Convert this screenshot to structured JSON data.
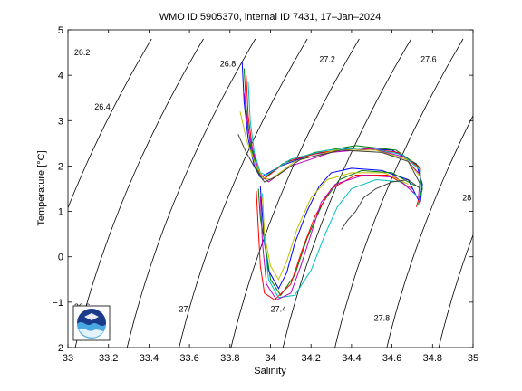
{
  "chart_data": {
    "type": "line",
    "title": "WMO ID 5905370, internal ID 7431, 17–Jan–2024",
    "xlabel": "Salinity",
    "ylabel": "Temperature [°C]",
    "xlim": [
      33,
      35
    ],
    "ylim": [
      -2,
      5
    ],
    "xticks": [
      "33",
      "33.2",
      "33.4",
      "33.6",
      "33.8",
      "34",
      "34.2",
      "34.4",
      "34.6",
      "34.8",
      "35"
    ],
    "yticks": [
      "−2",
      "−1",
      "0",
      "1",
      "2",
      "3",
      "4",
      "5"
    ],
    "grid": false,
    "legend": "none",
    "density_contours": [
      {
        "label": "26.2",
        "label_at": [
          33.07,
          4.5
        ]
      },
      {
        "label": "26.4",
        "label_at": [
          33.17,
          3.3
        ]
      },
      {
        "label": "26.6",
        "label_at": [
          33.07,
          -1.1
        ]
      },
      {
        "label": "26.8",
        "label_at": [
          33.79,
          4.25
        ]
      },
      {
        "label": "27",
        "label_at": [
          33.57,
          -1.15
        ]
      },
      {
        "label": "27.2",
        "label_at": [
          34.28,
          4.35
        ]
      },
      {
        "label": "27.4",
        "label_at": [
          34.04,
          -1.15
        ]
      },
      {
        "label": "27.6",
        "label_at": [
          34.78,
          4.35
        ]
      },
      {
        "label": "27.8",
        "label_at": [
          34.55,
          -1.35
        ]
      },
      {
        "label": "28",
        "label_at": [
          34.97,
          1.3
        ]
      }
    ],
    "profiles": [
      {
        "color": "#0000ff",
        "points": [
          [
            33.86,
            4.3
          ],
          [
            33.87,
            3.4
          ],
          [
            33.89,
            2.6
          ],
          [
            33.92,
            2.0
          ],
          [
            33.95,
            1.75
          ],
          [
            34.05,
            2.0
          ],
          [
            34.2,
            2.25
          ],
          [
            34.4,
            2.4
          ],
          [
            34.6,
            2.35
          ],
          [
            34.72,
            2.05
          ],
          [
            34.75,
            1.6
          ],
          [
            34.74,
            1.2
          ]
        ]
      },
      {
        "color": "#008000",
        "points": [
          [
            33.87,
            4.15
          ],
          [
            33.88,
            3.3
          ],
          [
            33.9,
            2.5
          ],
          [
            33.93,
            1.95
          ],
          [
            33.96,
            1.7
          ],
          [
            34.06,
            2.05
          ],
          [
            34.22,
            2.3
          ],
          [
            34.42,
            2.45
          ],
          [
            34.62,
            2.35
          ],
          [
            34.73,
            2.0
          ],
          [
            34.75,
            1.5
          ],
          [
            34.73,
            1.15
          ]
        ]
      },
      {
        "color": "#ff0000",
        "points": [
          [
            33.88,
            4.0
          ],
          [
            33.89,
            3.1
          ],
          [
            33.91,
            2.4
          ],
          [
            33.94,
            1.9
          ],
          [
            33.97,
            1.72
          ],
          [
            34.08,
            2.1
          ],
          [
            34.25,
            2.3
          ],
          [
            34.45,
            2.4
          ],
          [
            34.63,
            2.3
          ],
          [
            34.74,
            1.95
          ],
          [
            34.74,
            1.4
          ],
          [
            34.72,
            1.1
          ]
        ]
      },
      {
        "color": "#00bfbf",
        "points": [
          [
            33.89,
            3.85
          ],
          [
            33.9,
            3.0
          ],
          [
            33.92,
            2.3
          ],
          [
            33.95,
            1.85
          ],
          [
            33.98,
            1.8
          ],
          [
            34.1,
            2.15
          ],
          [
            34.28,
            2.35
          ],
          [
            34.48,
            2.4
          ],
          [
            34.65,
            2.25
          ],
          [
            34.74,
            1.9
          ],
          [
            34.74,
            1.35
          ]
        ]
      },
      {
        "color": "#bf00bf",
        "points": [
          [
            33.87,
            3.6
          ],
          [
            33.89,
            2.8
          ],
          [
            33.92,
            2.2
          ],
          [
            33.95,
            1.8
          ],
          [
            33.99,
            1.65
          ],
          [
            34.1,
            2.0
          ],
          [
            34.3,
            2.3
          ],
          [
            34.5,
            2.38
          ],
          [
            34.66,
            2.2
          ],
          [
            34.74,
            1.8
          ],
          [
            34.73,
            1.3
          ]
        ]
      },
      {
        "color": "#bfbf00",
        "points": [
          [
            33.85,
            3.2
          ],
          [
            33.88,
            2.6
          ],
          [
            33.92,
            2.1
          ],
          [
            33.96,
            1.75
          ],
          [
            34.0,
            1.7
          ],
          [
            34.12,
            2.1
          ],
          [
            34.32,
            2.35
          ],
          [
            34.52,
            2.35
          ],
          [
            34.67,
            2.15
          ],
          [
            34.74,
            1.75
          ]
        ]
      },
      {
        "color": "#404040",
        "points": [
          [
            33.84,
            2.7
          ],
          [
            33.88,
            2.3
          ],
          [
            33.93,
            1.9
          ],
          [
            33.97,
            1.65
          ],
          [
            34.02,
            1.75
          ],
          [
            34.15,
            2.15
          ],
          [
            34.35,
            2.35
          ],
          [
            34.55,
            2.3
          ],
          [
            34.68,
            2.1
          ],
          [
            34.74,
            1.6
          ]
        ]
      },
      {
        "color": "#0000ff",
        "points": [
          [
            33.95,
            1.55
          ],
          [
            33.96,
            0.9
          ],
          [
            33.97,
            0.3
          ],
          [
            33.99,
            -0.3
          ],
          [
            34.04,
            -0.7
          ],
          [
            34.08,
            -0.35
          ],
          [
            34.12,
            0.3
          ],
          [
            34.18,
            1.0
          ],
          [
            34.24,
            1.55
          ],
          [
            34.3,
            1.85
          ],
          [
            34.4,
            1.95
          ],
          [
            34.55,
            1.9
          ],
          [
            34.68,
            1.7
          ],
          [
            34.73,
            1.25
          ]
        ]
      },
      {
        "color": "#008000",
        "points": [
          [
            33.94,
            1.5
          ],
          [
            33.95,
            0.85
          ],
          [
            33.98,
            0.1
          ],
          [
            34.0,
            -0.5
          ],
          [
            34.05,
            -0.85
          ],
          [
            34.12,
            -0.4
          ],
          [
            34.18,
            0.4
          ],
          [
            34.26,
            1.2
          ],
          [
            34.34,
            1.7
          ],
          [
            34.45,
            1.9
          ],
          [
            34.6,
            1.85
          ],
          [
            34.72,
            1.55
          ]
        ]
      },
      {
        "color": "#ff0000",
        "points": [
          [
            33.93,
            1.45
          ],
          [
            33.94,
            0.6
          ],
          [
            33.95,
            -0.2
          ],
          [
            33.97,
            -0.8
          ],
          [
            34.02,
            -0.95
          ],
          [
            34.1,
            -0.6
          ],
          [
            34.16,
            0.2
          ],
          [
            34.22,
            0.9
          ],
          [
            34.3,
            1.5
          ],
          [
            34.42,
            1.8
          ],
          [
            34.58,
            1.8
          ],
          [
            34.7,
            1.5
          ]
        ]
      },
      {
        "color": "#00bfbf",
        "points": [
          [
            33.96,
            1.4
          ],
          [
            33.97,
            0.4
          ],
          [
            33.99,
            -0.5
          ],
          [
            34.04,
            -0.9
          ],
          [
            34.12,
            -0.85
          ],
          [
            34.2,
            -0.3
          ],
          [
            34.27,
            0.5
          ],
          [
            34.33,
            1.1
          ],
          [
            34.4,
            1.5
          ],
          [
            34.52,
            1.7
          ],
          [
            34.65,
            1.65
          ],
          [
            34.72,
            1.35
          ]
        ]
      },
      {
        "color": "#bf00bf",
        "points": [
          [
            33.95,
            1.35
          ],
          [
            33.96,
            0.3
          ],
          [
            33.98,
            -0.6
          ],
          [
            34.03,
            -0.95
          ],
          [
            34.1,
            -0.8
          ],
          [
            34.15,
            -0.2
          ],
          [
            34.2,
            0.5
          ],
          [
            34.25,
            1.2
          ],
          [
            34.32,
            1.6
          ],
          [
            34.46,
            1.8
          ],
          [
            34.62,
            1.75
          ],
          [
            34.71,
            1.4
          ]
        ]
      },
      {
        "color": "#bfbf00",
        "points": [
          [
            33.96,
            1.3
          ],
          [
            33.97,
            0.5
          ],
          [
            34.0,
            -0.2
          ],
          [
            34.04,
            -0.5
          ],
          [
            34.08,
            -0.1
          ],
          [
            34.13,
            0.6
          ],
          [
            34.2,
            1.3
          ],
          [
            34.28,
            1.7
          ],
          [
            34.4,
            1.85
          ],
          [
            34.56,
            1.85
          ],
          [
            34.68,
            1.6
          ]
        ]
      },
      {
        "color": "#404040",
        "points": [
          [
            34.35,
            0.6
          ],
          [
            34.38,
            0.8
          ],
          [
            34.42,
            1.0
          ],
          [
            34.46,
            1.3
          ],
          [
            34.52,
            1.5
          ],
          [
            34.6,
            1.65
          ],
          [
            34.68,
            1.7
          ],
          [
            34.74,
            1.5
          ]
        ]
      }
    ]
  }
}
